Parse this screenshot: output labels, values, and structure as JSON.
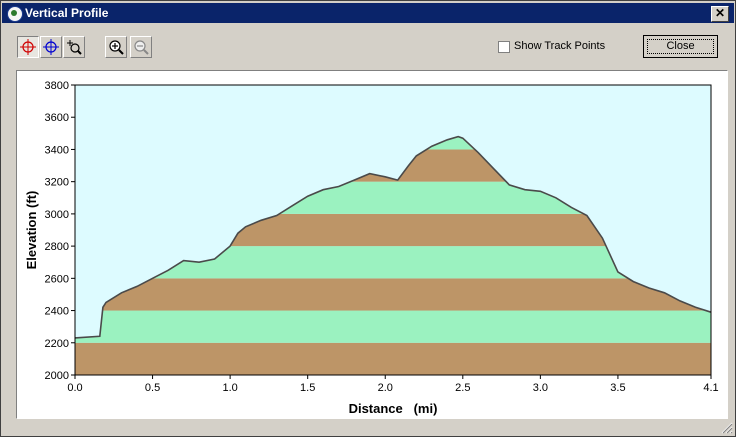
{
  "window": {
    "title": "Vertical Profile",
    "close_glyph": "✕"
  },
  "toolbar": {
    "tools": [
      {
        "name": "select-point-red",
        "icon": "crosshair-red-icon",
        "pressed": true
      },
      {
        "name": "select-point-blue",
        "icon": "crosshair-blue-icon",
        "pressed": false
      },
      {
        "name": "zoom-box",
        "icon": "zoom-box-icon",
        "pressed": false
      },
      {
        "name": "zoom-in",
        "icon": "zoom-in-icon",
        "pressed": false
      },
      {
        "name": "zoom-out",
        "icon": "zoom-out-icon",
        "pressed": false
      }
    ],
    "show_track_points_label": "Show Track Points",
    "show_track_points_checked": false,
    "close_button_label": "Close"
  },
  "colors": {
    "sky": "#ddfbff",
    "band_brown": "#bd9567",
    "band_green": "#9bf2c0",
    "profile_line": "#4a4a4a"
  },
  "chart_data": {
    "type": "area",
    "xlabel": "Distance   (mi)",
    "ylabel": "Elevation (ft)",
    "xlim": [
      0,
      4.1
    ],
    "ylim": [
      2000,
      3800
    ],
    "xticks": [
      "0.0",
      "0.5",
      "1.0",
      "1.5",
      "2.0",
      "2.5",
      "3.0",
      "3.5",
      "4.1"
    ],
    "yticks": [
      "2000",
      "2200",
      "2400",
      "2600",
      "2800",
      "3000",
      "3200",
      "3400",
      "3600",
      "3800"
    ],
    "band_interval_ft": 200,
    "x": [
      0.0,
      0.16,
      0.18,
      0.2,
      0.3,
      0.4,
      0.5,
      0.6,
      0.7,
      0.8,
      0.9,
      1.0,
      1.05,
      1.1,
      1.2,
      1.3,
      1.4,
      1.5,
      1.6,
      1.7,
      1.8,
      1.9,
      2.0,
      2.08,
      2.15,
      2.2,
      2.3,
      2.4,
      2.47,
      2.5,
      2.6,
      2.7,
      2.8,
      2.9,
      3.0,
      3.1,
      3.2,
      3.3,
      3.4,
      3.5,
      3.6,
      3.7,
      3.8,
      3.9,
      4.0,
      4.1
    ],
    "y": [
      2230,
      2240,
      2420,
      2450,
      2510,
      2550,
      2600,
      2650,
      2710,
      2700,
      2720,
      2800,
      2880,
      2920,
      2960,
      2990,
      3050,
      3110,
      3150,
      3170,
      3210,
      3250,
      3230,
      3210,
      3300,
      3360,
      3420,
      3460,
      3480,
      3470,
      3380,
      3280,
      3180,
      3150,
      3140,
      3100,
      3040,
      2990,
      2850,
      2640,
      2580,
      2540,
      2510,
      2460,
      2420,
      2390
    ]
  }
}
